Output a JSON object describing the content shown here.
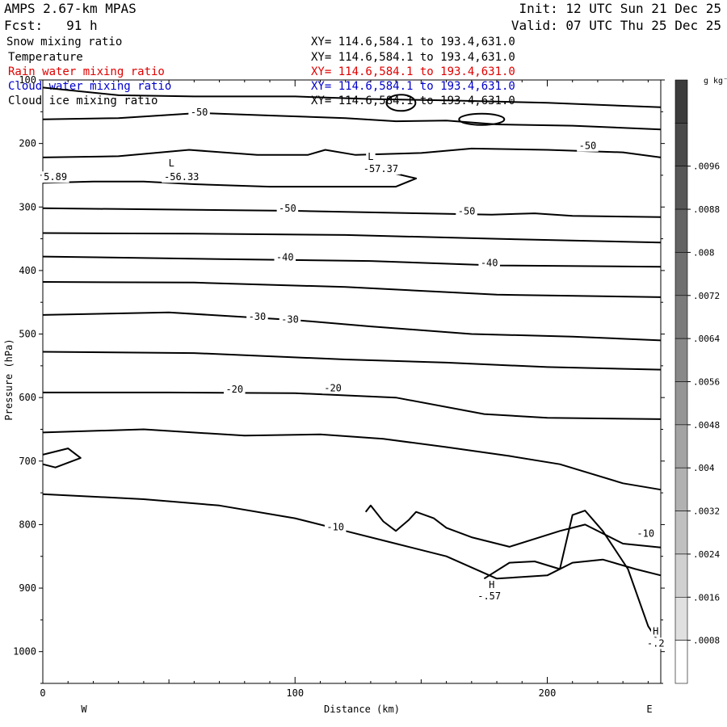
{
  "header": {
    "model": "AMPS 2.67-km MPAS",
    "forecast": "Fcst:   91 h",
    "init": "Init: 12 UTC Sun 21 Dec 25",
    "valid": "Valid: 07 UTC Thu 25 Dec 25",
    "fields": [
      {
        "name": "Snow mixing ratio",
        "xy": "XY= 114.6,584.1 to 193.4,631.0",
        "color": "#000000"
      },
      {
        "name": "Temperature",
        "xy": "XY= 114.6,584.1 to 193.4,631.0",
        "color": "#000000"
      },
      {
        "name": "Rain water mixing ratio",
        "xy": "XY= 114.6,584.1 to 193.4,631.0",
        "color": "#e00000"
      },
      {
        "name": "Cloud water mixing ratio",
        "xy": "XY= 114.6,584.1 to 193.4,631.0",
        "color": "#0000cc"
      },
      {
        "name": "Cloud ice mixing ratio",
        "xy": "XY= 114.6,584.1 to 193.4,631.0",
        "color": "#000000"
      }
    ]
  },
  "chart_data": {
    "type": "line",
    "subtype": "vertical cross-section, temperature contours",
    "xlabel": "Distance (km)",
    "ylabel": "Pressure (hPa)",
    "xlim": [
      0,
      245
    ],
    "ylim": [
      1050,
      100
    ],
    "x_ticks": [
      0,
      100,
      200
    ],
    "y_ticks": [
      100,
      200,
      300,
      400,
      500,
      600,
      700,
      800,
      900,
      1000
    ],
    "x_end_labels": {
      "left": "W",
      "right": "E"
    },
    "contour_labels": [
      {
        "text": "-50",
        "x": 62,
        "p": 156
      },
      {
        "text": "-50",
        "x": 216,
        "p": 209
      },
      {
        "text": "-50",
        "x": 97,
        "p": 307
      },
      {
        "text": "-50",
        "x": 168,
        "p": 312
      },
      {
        "text": "-40",
        "x": 96,
        "p": 384
      },
      {
        "text": "-40",
        "x": 177,
        "p": 393
      },
      {
        "text": "-30",
        "x": 85,
        "p": 478
      },
      {
        "text": "-30",
        "x": 98,
        "p": 482
      },
      {
        "text": "-20",
        "x": 76,
        "p": 592
      },
      {
        "text": "-20",
        "x": 115,
        "p": 590
      },
      {
        "text": "-10",
        "x": 116,
        "p": 809
      },
      {
        "text": "-10",
        "x": 239,
        "p": 819
      },
      {
        "text": "L",
        "x": 51,
        "p": 236
      },
      {
        "text": "-56.33",
        "x": 55,
        "p": 258
      },
      {
        "text": "L",
        "x": 130,
        "p": 226
      },
      {
        "text": "-57.37",
        "x": 134,
        "p": 245
      },
      {
        "text": "5.89",
        "x": 5,
        "p": 258
      },
      {
        "text": "H",
        "x": 178,
        "p": 900
      },
      {
        "text": "-.57",
        "x": 177,
        "p": 918
      },
      {
        "text": "H",
        "x": 243,
        "p": 973
      },
      {
        "text": "-.2",
        "x": 243,
        "p": 992
      }
    ],
    "colorbar": {
      "unit": "g kg⁻¹",
      "ticks": [
        ".0096",
        ".0088",
        ".008",
        ".0072",
        ".0064",
        ".0056",
        ".0048",
        ".004",
        ".0032",
        ".0024",
        ".0016",
        ".0008"
      ],
      "colors": [
        "#3c3c3c",
        "#4a4a4a",
        "#575757",
        "#636363",
        "#6f6f6f",
        "#7b7b7b",
        "#888888",
        "#959595",
        "#a3a3a3",
        "#b1b1b1",
        "#c0c0c0",
        "#d0d0d0",
        "#e0e0e0",
        "#ffffff"
      ]
    }
  }
}
